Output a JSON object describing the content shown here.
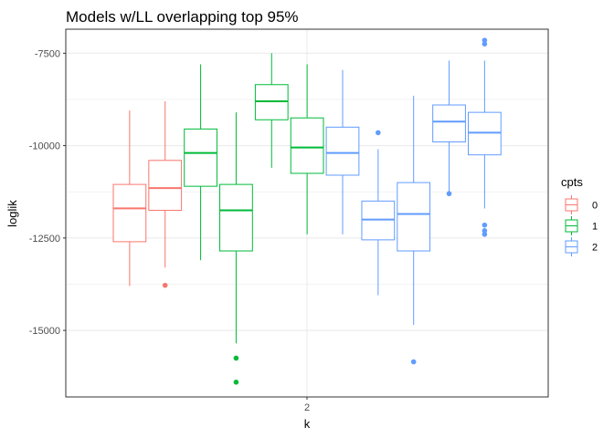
{
  "chart_data": {
    "type": "boxplot",
    "title": "Models w/LL overlapping top 95%",
    "xlabel": "k",
    "ylabel": "loglik",
    "x_categories": [
      "2"
    ],
    "ylim": [
      -16800,
      -6850
    ],
    "y_ticks": [
      -7500,
      -10000,
      -12500,
      -15000
    ],
    "y_tick_labels": [
      "-7500",
      "-10000",
      "-12500",
      "-15000"
    ],
    "grid": true,
    "legend": {
      "title": "cpts",
      "placement": "right",
      "entries": [
        {
          "label": "0",
          "color": "#F8766D"
        },
        {
          "label": "1",
          "color": "#00BA38"
        },
        {
          "label": "2",
          "color": "#619CFF"
        }
      ]
    },
    "boxes": [
      {
        "cpts": "0",
        "lower_whisker": -13800,
        "q1": -12600,
        "median": -11700,
        "q3": -11050,
        "upper_whisker": -9050,
        "outliers": []
      },
      {
        "cpts": "0",
        "lower_whisker": -13300,
        "q1": -11750,
        "median": -11150,
        "q3": -10400,
        "upper_whisker": -8800,
        "outliers": [
          -13780
        ]
      },
      {
        "cpts": "1",
        "lower_whisker": -13100,
        "q1": -11100,
        "median": -10200,
        "q3": -9550,
        "upper_whisker": -7800,
        "outliers": []
      },
      {
        "cpts": "1",
        "lower_whisker": -15350,
        "q1": -12850,
        "median": -11750,
        "q3": -11050,
        "upper_whisker": -9100,
        "outliers": [
          -15750,
          -16400
        ]
      },
      {
        "cpts": "1",
        "lower_whisker": -10600,
        "q1": -9300,
        "median": -8800,
        "q3": -8350,
        "upper_whisker": -7500,
        "outliers": []
      },
      {
        "cpts": "1",
        "lower_whisker": -12400,
        "q1": -10750,
        "median": -10050,
        "q3": -9250,
        "upper_whisker": -7800,
        "outliers": []
      },
      {
        "cpts": "2",
        "lower_whisker": -12400,
        "q1": -10800,
        "median": -10200,
        "q3": -9500,
        "upper_whisker": -7950,
        "outliers": []
      },
      {
        "cpts": "2",
        "lower_whisker": -14050,
        "q1": -12550,
        "median": -12000,
        "q3": -11500,
        "upper_whisker": -10100,
        "outliers": [
          -9650
        ]
      },
      {
        "cpts": "2",
        "lower_whisker": -14850,
        "q1": -12850,
        "median": -11850,
        "q3": -11000,
        "upper_whisker": -8650,
        "outliers": [
          -15850
        ]
      },
      {
        "cpts": "2",
        "lower_whisker": -11300,
        "q1": -9900,
        "median": -9350,
        "q3": -8900,
        "upper_whisker": -7700,
        "outliers": [
          -11300
        ]
      },
      {
        "cpts": "2",
        "lower_whisker": -11700,
        "q1": -10250,
        "median": -9650,
        "q3": -9100,
        "upper_whisker": -7700,
        "outliers": [
          -7150,
          -7250,
          -12150,
          -12300,
          -12400
        ]
      }
    ]
  }
}
